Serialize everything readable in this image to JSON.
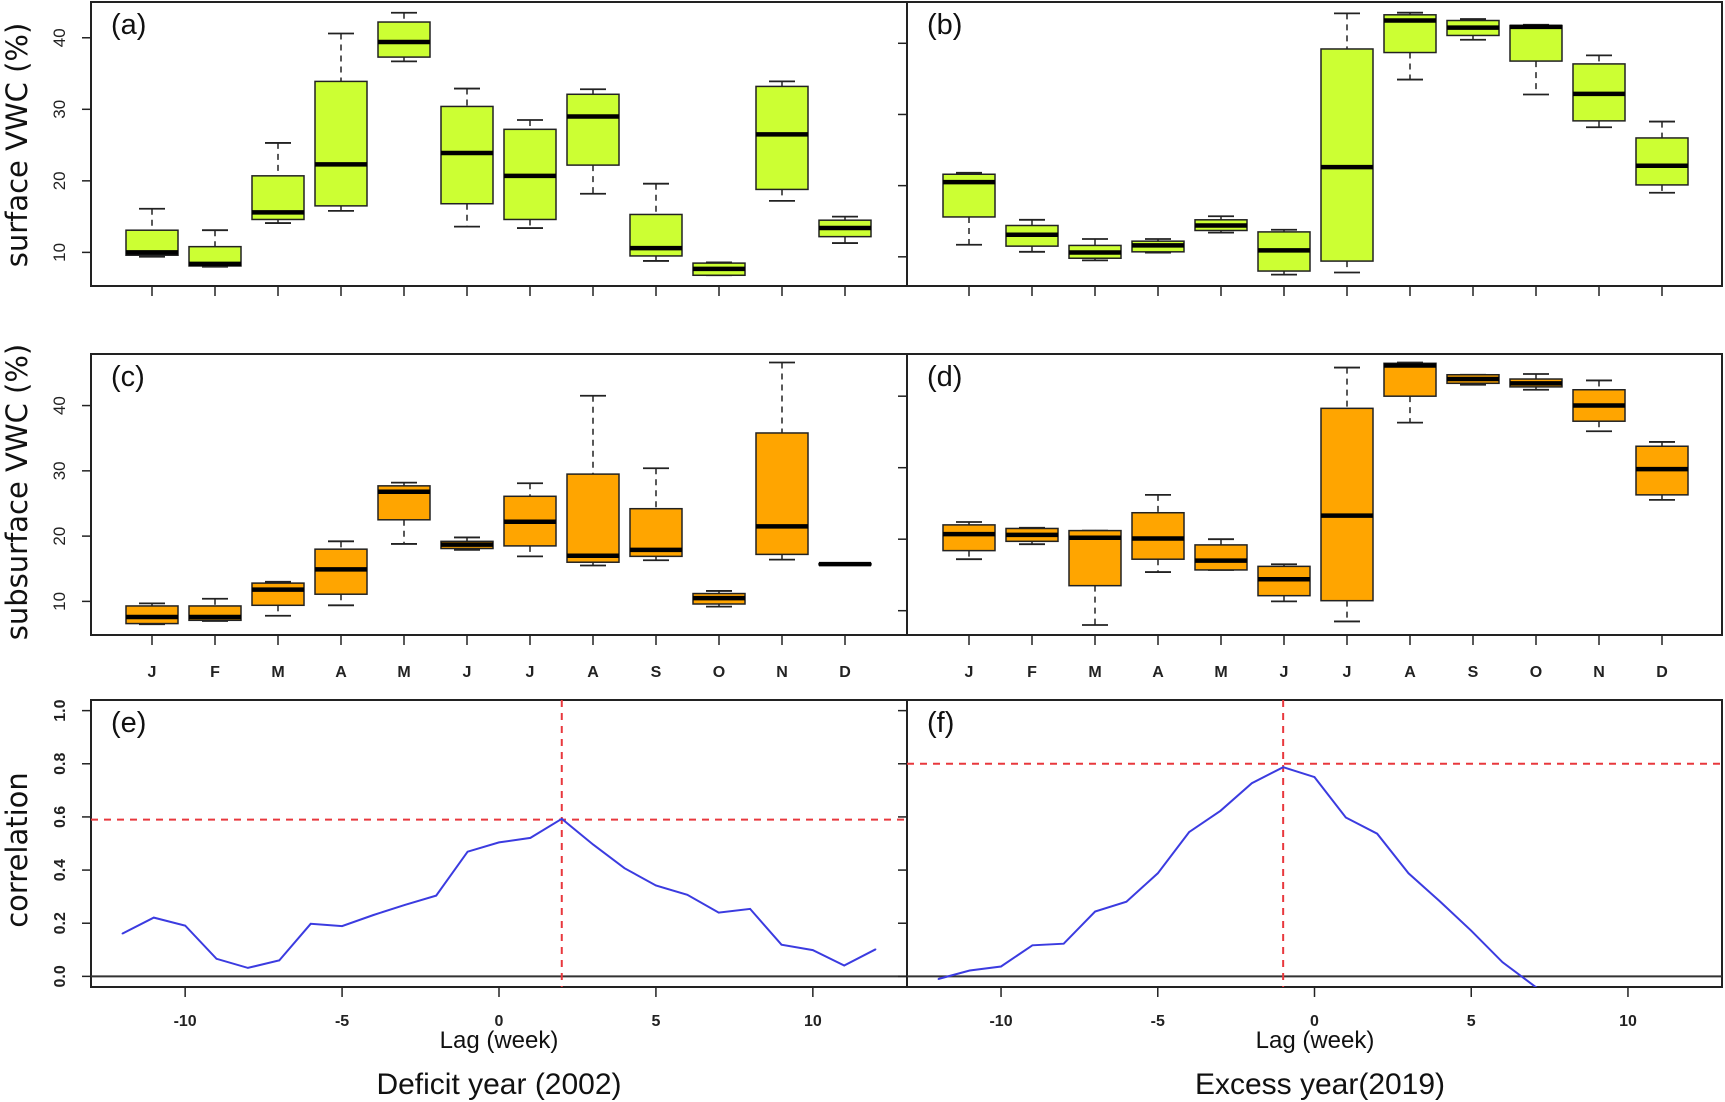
{
  "colors": {
    "surface_box": "#CCFF33",
    "subsurface_box": "#FFA500",
    "correlation_line": "#3b3be0",
    "reference_line": "#e8383d"
  },
  "row_labels": {
    "surface": "surface VWC (%)",
    "subsurface": "subsurface VWC (%)",
    "correlation": "correlation"
  },
  "column_titles": {
    "left": "Deficit year (2002)",
    "right": "Excess year(2019)"
  },
  "chart_data": [
    {
      "panel": "(a)",
      "type": "boxplot",
      "ylabel": "surface VWC (%)",
      "categories": [
        "J",
        "F",
        "M",
        "A",
        "M",
        "J",
        "J",
        "A",
        "S",
        "O",
        "N",
        "D"
      ],
      "yticks": [
        10,
        20,
        30,
        40
      ],
      "ylim": [
        5.3,
        45.0
      ],
      "stats_order": [
        "min",
        "q1",
        "median",
        "q3",
        "max"
      ],
      "boxes": [
        [
          9.4,
          9.6,
          10.0,
          13.1,
          16.1
        ],
        [
          8.0,
          8.1,
          8.4,
          10.8,
          13.1
        ],
        [
          14.1,
          14.6,
          15.6,
          20.7,
          25.3
        ],
        [
          15.8,
          16.5,
          22.3,
          33.9,
          40.6
        ],
        [
          36.7,
          37.3,
          39.4,
          42.2,
          43.5
        ],
        [
          13.6,
          16.8,
          23.9,
          30.4,
          32.9
        ],
        [
          13.4,
          14.6,
          20.7,
          27.2,
          28.5
        ],
        [
          18.2,
          22.2,
          29.0,
          32.1,
          32.8
        ],
        [
          8.8,
          9.5,
          10.6,
          15.3,
          19.6
        ],
        [
          6.8,
          6.8,
          7.7,
          8.5,
          8.6
        ],
        [
          17.2,
          18.8,
          26.5,
          33.2,
          33.9
        ],
        [
          11.3,
          12.2,
          13.4,
          14.5,
          15.0
        ]
      ]
    },
    {
      "panel": "(b)",
      "type": "boxplot",
      "categories": [
        "J",
        "F",
        "M",
        "A",
        "M",
        "J",
        "J",
        "A",
        "S",
        "O",
        "N",
        "D"
      ],
      "yticks": [
        10,
        20,
        30,
        40
      ],
      "ylim": [
        5.9,
        45.8
      ],
      "stats_order": [
        "min",
        "q1",
        "median",
        "q3",
        "max"
      ],
      "boxes": [
        [
          11.7,
          15.6,
          20.5,
          21.6,
          21.8
        ],
        [
          10.7,
          11.5,
          13.1,
          14.4,
          15.2
        ],
        [
          9.5,
          9.8,
          10.6,
          11.6,
          12.5
        ],
        [
          10.6,
          10.7,
          11.6,
          12.2,
          12.5
        ],
        [
          13.4,
          13.7,
          14.4,
          15.2,
          15.7
        ],
        [
          7.5,
          8.0,
          10.9,
          13.5,
          13.8
        ],
        [
          7.8,
          9.4,
          22.6,
          39.2,
          44.2
        ],
        [
          34.9,
          38.7,
          43.2,
          44.0,
          44.3
        ],
        [
          40.5,
          41.1,
          42.2,
          43.2,
          43.4
        ],
        [
          32.8,
          37.5,
          42.3,
          42.5,
          42.6
        ],
        [
          28.2,
          29.1,
          32.9,
          37.1,
          38.3
        ],
        [
          19.0,
          20.1,
          22.8,
          26.7,
          29.0
        ]
      ]
    },
    {
      "panel": "(c)",
      "type": "boxplot",
      "ylabel": "subsurface VWC (%)",
      "categories": [
        "J",
        "F",
        "M",
        "A",
        "M",
        "J",
        "J",
        "A",
        "S",
        "O",
        "N",
        "D"
      ],
      "yticks": [
        10,
        20,
        30,
        40
      ],
      "ylim": [
        4.85,
        47.9
      ],
      "stats_order": [
        "min",
        "q1",
        "median",
        "q3",
        "max"
      ],
      "boxes": [
        [
          6.5,
          6.6,
          7.6,
          9.3,
          9.7
        ],
        [
          7.0,
          7.1,
          7.6,
          9.3,
          10.4
        ],
        [
          7.8,
          9.4,
          11.8,
          12.8,
          13.0
        ],
        [
          9.4,
          11.1,
          14.9,
          18.0,
          19.2
        ],
        [
          18.8,
          22.5,
          26.8,
          27.7,
          28.2
        ],
        [
          17.9,
          18.1,
          18.7,
          19.2,
          19.8
        ],
        [
          16.9,
          18.5,
          22.2,
          26.1,
          28.1
        ],
        [
          15.5,
          16.0,
          17.0,
          29.5,
          41.5
        ],
        [
          16.3,
          16.9,
          17.9,
          24.2,
          30.4
        ],
        [
          9.2,
          9.6,
          10.5,
          11.2,
          11.6
        ],
        [
          16.4,
          17.2,
          21.5,
          35.8,
          46.6
        ],
        [
          15.6,
          15.6,
          15.7,
          15.8,
          15.8
        ]
      ]
    },
    {
      "panel": "(d)",
      "type": "boxplot",
      "categories": [
        "J",
        "F",
        "M",
        "A",
        "M",
        "J",
        "J",
        "A",
        "S",
        "O",
        "N",
        "D"
      ],
      "yticks": [
        10,
        20,
        30,
        40
      ],
      "ylim": [
        6.6,
        45.9
      ],
      "stats_order": [
        "min",
        "q1",
        "median",
        "q3",
        "max"
      ],
      "boxes": [
        [
          17.2,
          18.4,
          20.7,
          22.0,
          22.4
        ],
        [
          19.3,
          19.7,
          20.6,
          21.5,
          21.6
        ],
        [
          8.0,
          13.5,
          20.2,
          21.2,
          21.2
        ],
        [
          15.4,
          17.2,
          20.1,
          23.7,
          26.2
        ],
        [
          15.7,
          15.7,
          17.0,
          19.2,
          20.0
        ],
        [
          11.3,
          12.1,
          14.4,
          16.2,
          16.5
        ],
        [
          8.5,
          11.4,
          23.3,
          38.3,
          44.0
        ],
        [
          36.3,
          40.0,
          44.3,
          44.6,
          44.7
        ],
        [
          41.6,
          41.8,
          42.4,
          43.0,
          43.0
        ],
        [
          40.9,
          41.3,
          41.8,
          42.4,
          43.1
        ],
        [
          35.1,
          36.5,
          38.7,
          40.9,
          42.2
        ],
        [
          25.5,
          26.2,
          29.8,
          33.0,
          33.6
        ]
      ]
    },
    {
      "panel": "(e)",
      "type": "line",
      "ylabel": "correlation",
      "xlabel": "Lag (week)",
      "title": "Deficit year (2002)",
      "xlim": [
        -13,
        13
      ],
      "ylim": [
        -0.04,
        1.04
      ],
      "xticks": [
        -10,
        -5,
        0,
        5,
        10
      ],
      "yticks": [
        "0.0",
        "0.2",
        "0.4",
        "0.6",
        "0.8",
        "1.0"
      ],
      "x": [
        -12,
        -11,
        -10,
        -9,
        -8,
        -7,
        -6,
        -5,
        -4,
        -3,
        -2,
        -1,
        0,
        1,
        2,
        3,
        4,
        5,
        6,
        7,
        8,
        9,
        10,
        11,
        12
      ],
      "y": [
        0.161,
        0.221,
        0.191,
        0.066,
        0.032,
        0.06,
        0.198,
        0.189,
        0.231,
        0.269,
        0.304,
        0.469,
        0.504,
        0.521,
        0.593,
        0.496,
        0.407,
        0.342,
        0.307,
        0.24,
        0.254,
        0.119,
        0.099,
        0.041,
        0.102
      ],
      "hline": 0.59,
      "vline": 2,
      "zero_line": 0
    },
    {
      "panel": "(f)",
      "type": "line",
      "xlabel": "Lag (week)",
      "title": "Excess year(2019)",
      "xlim": [
        -13,
        13
      ],
      "ylim": [
        -0.04,
        1.04
      ],
      "xticks": [
        -10,
        -5,
        0,
        5,
        10
      ],
      "yticks": [
        "0.0",
        "0.2",
        "0.4",
        "0.6",
        "0.8",
        "1.0"
      ],
      "x": [
        -12,
        -11,
        -10,
        -9,
        -8,
        -7,
        -6,
        -5,
        -4,
        -3,
        -2,
        -1,
        0,
        1,
        2,
        3,
        4,
        5,
        6,
        7,
        8
      ],
      "y": [
        -0.01,
        0.022,
        0.037,
        0.117,
        0.123,
        0.244,
        0.281,
        0.388,
        0.543,
        0.623,
        0.727,
        0.787,
        0.75,
        0.598,
        0.537,
        0.388,
        0.282,
        0.172,
        0.053,
        -0.035,
        -0.12
      ],
      "hline": 0.8,
      "vline": -1,
      "zero_line": 0
    }
  ]
}
